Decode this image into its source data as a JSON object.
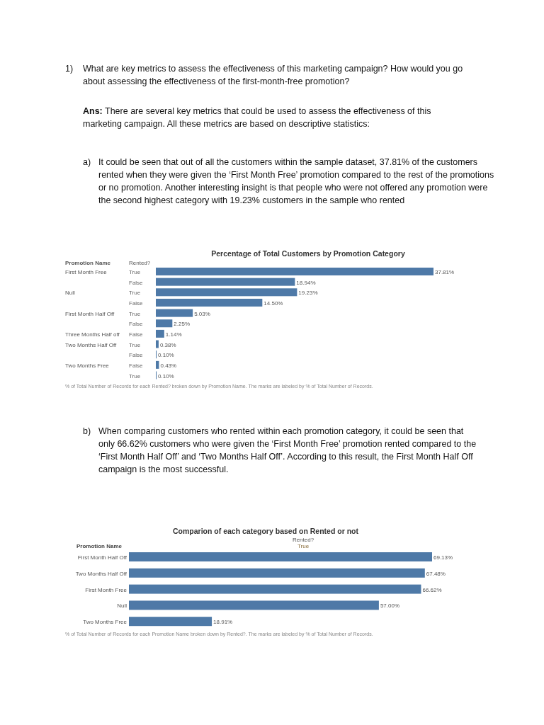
{
  "chart_data": [
    {
      "type": "other",
      "annotations": [
        "1)",
        "What are key metrics to assess the effectiveness of this marketing campaign? How would you go about assessing the effectiveness of the first-month-free promotion?",
        "Ans:",
        "There are several key metrics that could be used to assess the effectiveness of this marketing campaign. All these metrics are based on descriptive statistics:",
        "a)",
        "It could be seen that out of all the customers within the sample dataset, 37.81% of the customers rented when they were given the ‘First Month Free’ promotion compared to the rest of the promotions or no promotion. Another interesting insight is that people who were not offered any promotion were the second highest category with 19.23% customers in the sample who rented"
      ]
    },
    {
      "type": "bar",
      "orientation": "horizontal",
      "title": "Percentage of Total Customers by Promotion Category",
      "ylabel": "Promotion Name",
      "legend_title": "Rented?",
      "categories": [
        "True",
        "False",
        "True",
        "False",
        "True",
        "False",
        "False",
        "True",
        "False",
        "False",
        "True"
      ],
      "values": [
        37.81,
        18.94,
        19.23,
        14.5,
        5.03,
        2.25,
        1.14,
        0.38,
        0.1,
        0.43,
        0.1
      ],
      "value_labels": [
        "37.81%",
        "18.94%",
        "19.23%",
        "14.50%",
        "5.03%",
        "2.25%",
        "1.14%",
        "0.38%",
        "0.10%",
        "0.43%",
        "0.10%"
      ],
      "color": "#4e79a7",
      "annotations": [
        "First Month Free",
        "Null",
        "First Month Half Off",
        "Three Months Half off",
        "Two Months Half Off",
        "Two Months Free",
        "% of Total Number of Records for each Rented? broken down by Promotion Name.  The marks are labeled by % of Total Number of Records."
      ]
    },
    {
      "type": "other",
      "annotations": [
        "b)",
        "When comparing customers who rented within each promotion category, it could be seen that only 66.62% customers who were given the ‘First Month Free’ promotion rented compared to the ‘First Month Half Off’ and ‘Two Months Half Off’. According to this result, the First Month Half Off campaign is the most successful."
      ]
    },
    {
      "type": "bar",
      "orientation": "horizontal",
      "title": "Comparion of each category based on Rented or not",
      "ylabel": "Promotion Name",
      "legend_title": "Rented?",
      "categories": [
        "First Month Half Off",
        "Two Months Half Off",
        "First Month Free",
        "Null",
        "Two Months Free"
      ],
      "series": [
        {
          "name": "True",
          "color": "#4e79a7",
          "values": [
            69.13,
            67.48,
            66.62,
            57.0,
            18.91
          ],
          "value_labels": [
            "69.13%",
            "67.48%",
            "66.62%",
            "57.00%",
            "18.91%"
          ]
        }
      ],
      "annotations": [
        "% of Total Number of Records for each Promotion Name broken down by Rented?.  The marks are labeled by % of Total Number of Records."
      ]
    }
  ]
}
